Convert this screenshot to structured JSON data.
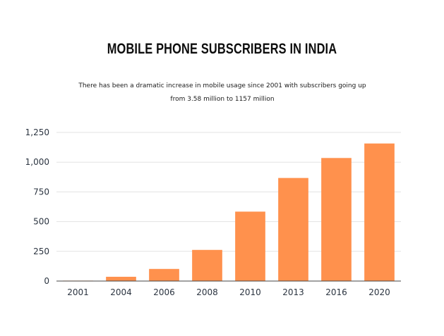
{
  "header": {
    "title": "MOBILE PHONE SUBSCRIBERS IN INDIA",
    "subtitle": "There has been a dramatic increase in mobile usage since 2001 with subscribers going up from 3.58 million to 1157 million"
  },
  "chart_data": {
    "type": "bar",
    "categories": [
      "2001",
      "2004",
      "2006",
      "2008",
      "2010",
      "2013",
      "2016",
      "2020"
    ],
    "values": [
      3.58,
      36,
      102,
      262,
      584,
      867,
      1035,
      1157
    ],
    "ylim": [
      0,
      1250
    ],
    "yticks": [
      0,
      250,
      500,
      750,
      1000,
      1250
    ],
    "ytick_labels": [
      "0",
      "250",
      "500",
      "750",
      "1,000",
      "1,250"
    ],
    "xlabel": "",
    "ylabel": "",
    "grid": true,
    "legend": "none",
    "colors": {
      "bar": "#FF914D",
      "grid": "#e3e3e3",
      "axis": "#444444"
    }
  }
}
